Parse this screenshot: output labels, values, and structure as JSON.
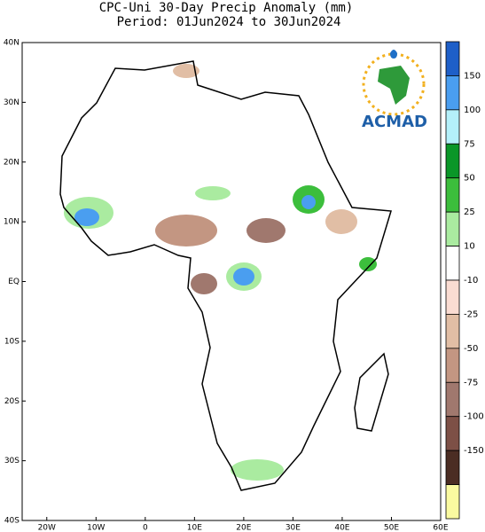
{
  "title": "CPC-Uni 30-Day Precip Anomaly (mm)",
  "subtitle": "Period: 01Jun2024 to 30Jun2024",
  "logo_text": "ACMAD",
  "map": {
    "xlim": [
      -25,
      60
    ],
    "ylim": [
      -40,
      40
    ],
    "xticks": [
      {
        "value": -20,
        "label": "20W"
      },
      {
        "value": -10,
        "label": "10W"
      },
      0,
      {
        "value": 10,
        "label": "10E"
      },
      {
        "value": 20,
        "label": "20E"
      },
      {
        "value": 30,
        "label": "30E"
      },
      {
        "value": 40,
        "label": "40E"
      },
      {
        "value": 50,
        "label": "50E"
      },
      {
        "value": 60,
        "label": "60E"
      }
    ],
    "yticks": [
      {
        "value": -40,
        "label": "40S"
      },
      {
        "value": -30,
        "label": "30S"
      },
      {
        "value": -20,
        "label": "20S"
      },
      {
        "value": -10,
        "label": "10S"
      },
      {
        "value": 0,
        "label": "EQ"
      },
      {
        "value": 10,
        "label": "10N"
      },
      {
        "value": 20,
        "label": "20N"
      },
      {
        "value": 30,
        "label": "30N"
      },
      {
        "value": 40,
        "label": "40N"
      }
    ]
  },
  "colorbar": {
    "ticks": [
      150,
      100,
      75,
      50,
      25,
      10,
      -10,
      -25,
      -50,
      -75,
      -100,
      -150
    ],
    "colors": [
      "#1e5fc8",
      "#4a9ef0",
      "#b4f0fa",
      "#0a9628",
      "#3cbe3c",
      "#aaeba0",
      "#ffffff",
      "#fadcd2",
      "#e1bea5",
      "#c39682",
      "#a0786e",
      "#7d5046",
      "#4b2d23",
      "#fafaa0"
    ]
  }
}
